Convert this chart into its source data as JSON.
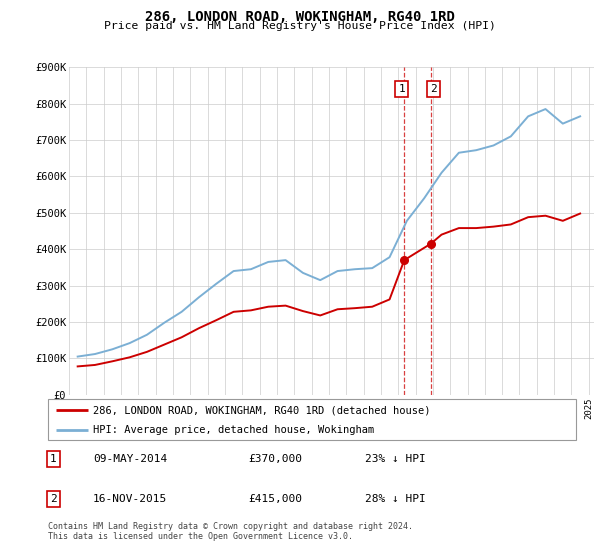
{
  "title": "286, LONDON ROAD, WOKINGHAM, RG40 1RD",
  "subtitle": "Price paid vs. HM Land Registry's House Price Index (HPI)",
  "ylim": [
    0,
    900000
  ],
  "yticks": [
    0,
    100000,
    200000,
    300000,
    400000,
    500000,
    600000,
    700000,
    800000,
    900000
  ],
  "ytick_labels": [
    "£0",
    "£100K",
    "£200K",
    "£300K",
    "£400K",
    "£500K",
    "£600K",
    "£700K",
    "£800K",
    "£900K"
  ],
  "hpi_color": "#7bafd4",
  "price_color": "#cc0000",
  "legend_label_price": "286, LONDON ROAD, WOKINGHAM, RG40 1RD (detached house)",
  "legend_label_hpi": "HPI: Average price, detached house, Wokingham",
  "sale1_date": "09-MAY-2014",
  "sale1_price": 370000,
  "sale1_pct": "23% ↓ HPI",
  "sale2_date": "16-NOV-2015",
  "sale2_price": 415000,
  "sale2_pct": "28% ↓ HPI",
  "footnote": "Contains HM Land Registry data © Crown copyright and database right 2024.\nThis data is licensed under the Open Government Licence v3.0.",
  "hpi_x": [
    1995.5,
    1996.5,
    1997.5,
    1998.5,
    1999.5,
    2000.5,
    2001.5,
    2002.5,
    2003.5,
    2004.5,
    2005.5,
    2006.5,
    2007.5,
    2008.5,
    2009.5,
    2010.5,
    2011.5,
    2012.5,
    2013.5,
    2014.5,
    2015.5,
    2016.5,
    2017.5,
    2018.5,
    2019.5,
    2020.5,
    2021.5,
    2022.5,
    2023.5,
    2024.5
  ],
  "hpi_values": [
    105000,
    112000,
    125000,
    142000,
    165000,
    198000,
    228000,
    268000,
    305000,
    340000,
    345000,
    365000,
    370000,
    335000,
    315000,
    340000,
    345000,
    348000,
    378000,
    478000,
    540000,
    610000,
    665000,
    672000,
    685000,
    710000,
    765000,
    785000,
    745000,
    765000
  ],
  "price_x": [
    1995.5,
    1996.5,
    1997.5,
    1998.5,
    1999.5,
    2000.5,
    2001.5,
    2002.5,
    2003.5,
    2004.5,
    2005.5,
    2006.5,
    2007.5,
    2008.5,
    2009.5,
    2010.5,
    2011.5,
    2012.5,
    2013.5,
    2014.35,
    2015.88,
    2016.5,
    2017.5,
    2018.5,
    2019.5,
    2020.5,
    2021.5,
    2022.5,
    2023.5,
    2024.5
  ],
  "price_values": [
    78000,
    82000,
    92000,
    103000,
    118000,
    138000,
    158000,
    183000,
    205000,
    228000,
    232000,
    242000,
    245000,
    230000,
    218000,
    235000,
    238000,
    242000,
    262000,
    370000,
    415000,
    440000,
    458000,
    458000,
    462000,
    468000,
    488000,
    492000,
    478000,
    498000
  ],
  "sale1_x": 2014.35,
  "sale2_x": 2015.88,
  "vline1_x": 2014.35,
  "vline2_x": 2015.88,
  "xlim_left": 1995,
  "xlim_right": 2025.3
}
